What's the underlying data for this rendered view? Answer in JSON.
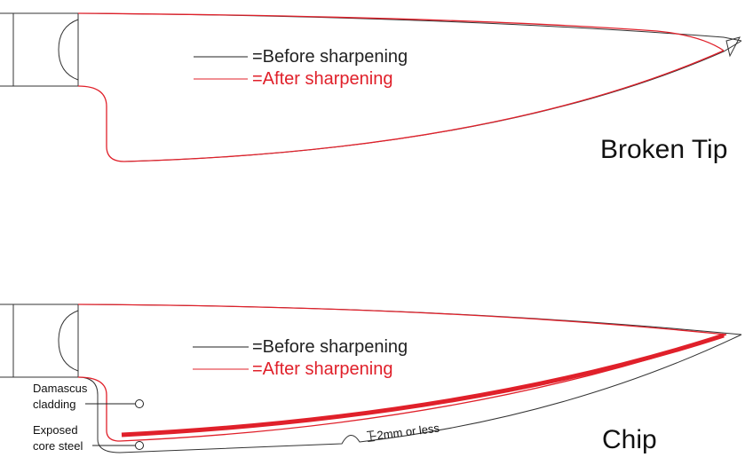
{
  "panels": [
    {
      "legend": {
        "before": "=Before sharpening",
        "after": "=After sharpening"
      },
      "label": "Broken Tip"
    },
    {
      "legend": {
        "before": "=Before sharpening",
        "after": "=After sharpening"
      },
      "label": "Chip",
      "callouts": [
        {
          "lines": [
            "Damascus",
            "cladding"
          ]
        },
        {
          "lines": [
            "Exposed",
            "core steel"
          ]
        }
      ],
      "dimension": "2mm or less"
    }
  ]
}
